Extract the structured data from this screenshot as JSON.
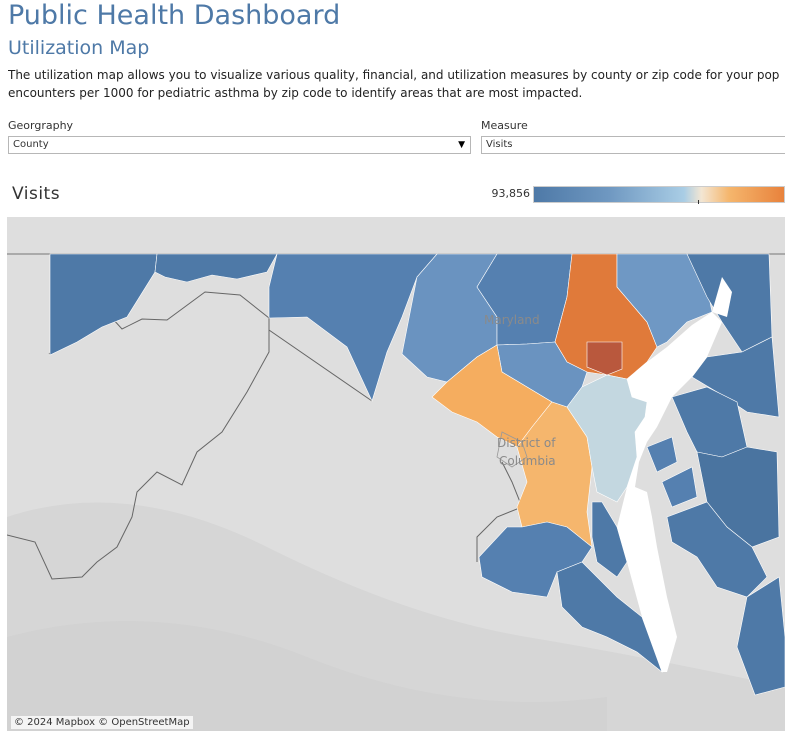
{
  "dashboard": {
    "title": "Public Health Dashboard",
    "subtitle": "Utilization Map",
    "description_line1": "The utilization map allows you to visualize various quality, financial, and utilization measures by county or zip code for your pop",
    "description_line2": "encounters per 1000 for pediatric asthma by zip code to identify areas that are most impacted."
  },
  "filters": {
    "geography": {
      "label": "Georgraphy",
      "value": "County"
    },
    "measure": {
      "label": "Measure",
      "value": "Visits"
    }
  },
  "sheet": {
    "title": "Visits"
  },
  "legend": {
    "min_value": "93,856",
    "colors": [
      "#4e79a7",
      "#a9cde5",
      "#f5b66d",
      "#e8823c"
    ]
  },
  "map": {
    "labels": [
      "Maryland",
      "District of",
      "Columbia"
    ],
    "attribution": "© 2024 Mapbox © OpenStreetMap"
  }
}
